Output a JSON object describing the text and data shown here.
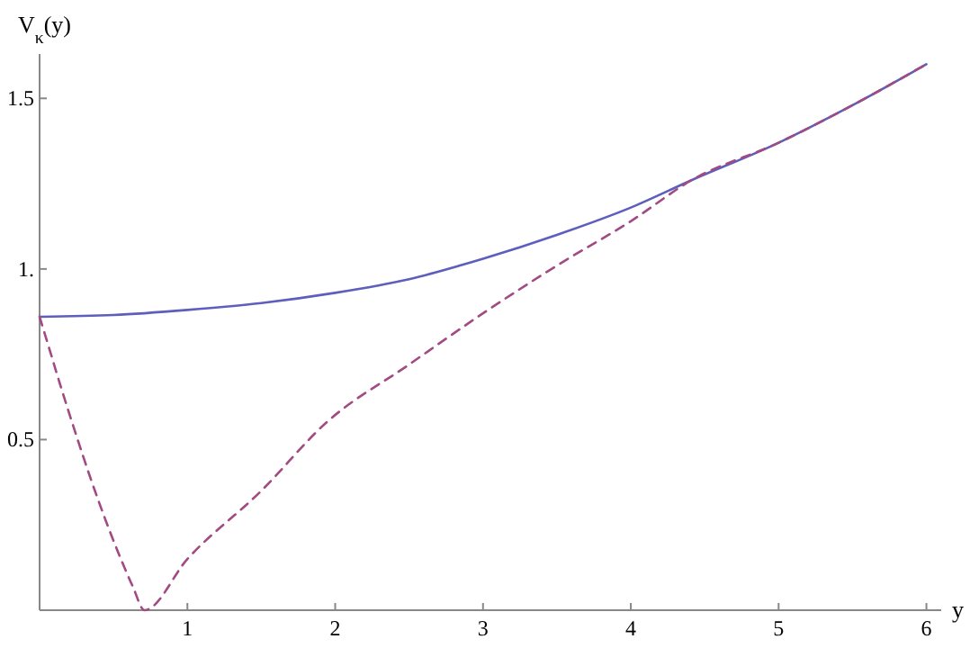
{
  "chart_data": {
    "type": "line",
    "xlabel": "y",
    "ylabel": "V$_{κ}$(y)",
    "xlim": [
      0,
      6.1
    ],
    "ylim": [
      0,
      1.63
    ],
    "xticks": [
      1,
      2,
      3,
      4,
      5,
      6
    ],
    "yticks": [
      {
        "value": 0.5,
        "label": "0.5"
      },
      {
        "value": 1,
        "label": "1."
      },
      {
        "value": 1.5,
        "label": "1.5"
      }
    ],
    "grid": false,
    "series": [
      {
        "color": "#5e5ebd",
        "line_style": "solid",
        "x": [
          0,
          0.5,
          1,
          1.5,
          2,
          2.5,
          3,
          3.5,
          4,
          4.41,
          5,
          5.5,
          6
        ],
        "values": [
          0.86,
          0.865,
          0.88,
          0.9,
          0.93,
          0.97,
          1.03,
          1.1,
          1.18,
          1.26,
          1.37,
          1.48,
          1.6
        ]
      },
      {
        "color": "#a24a82",
        "line_style": "dashed",
        "x": [
          0,
          0.07,
          0.14,
          0.25,
          0.35,
          0.45,
          0.55,
          0.63,
          0.71,
          1,
          1.5,
          1.94,
          2.5,
          3,
          3.5,
          4,
          4.41,
          5,
          5.5,
          6
        ],
        "values": [
          0.86,
          0.76,
          0.66,
          0.51,
          0.38,
          0.26,
          0.15,
          0.07,
          0,
          0.15,
          0.35,
          0.55,
          0.72,
          0.87,
          1.01,
          1.14,
          1.26,
          1.37,
          1.48,
          1.6
        ]
      }
    ]
  }
}
